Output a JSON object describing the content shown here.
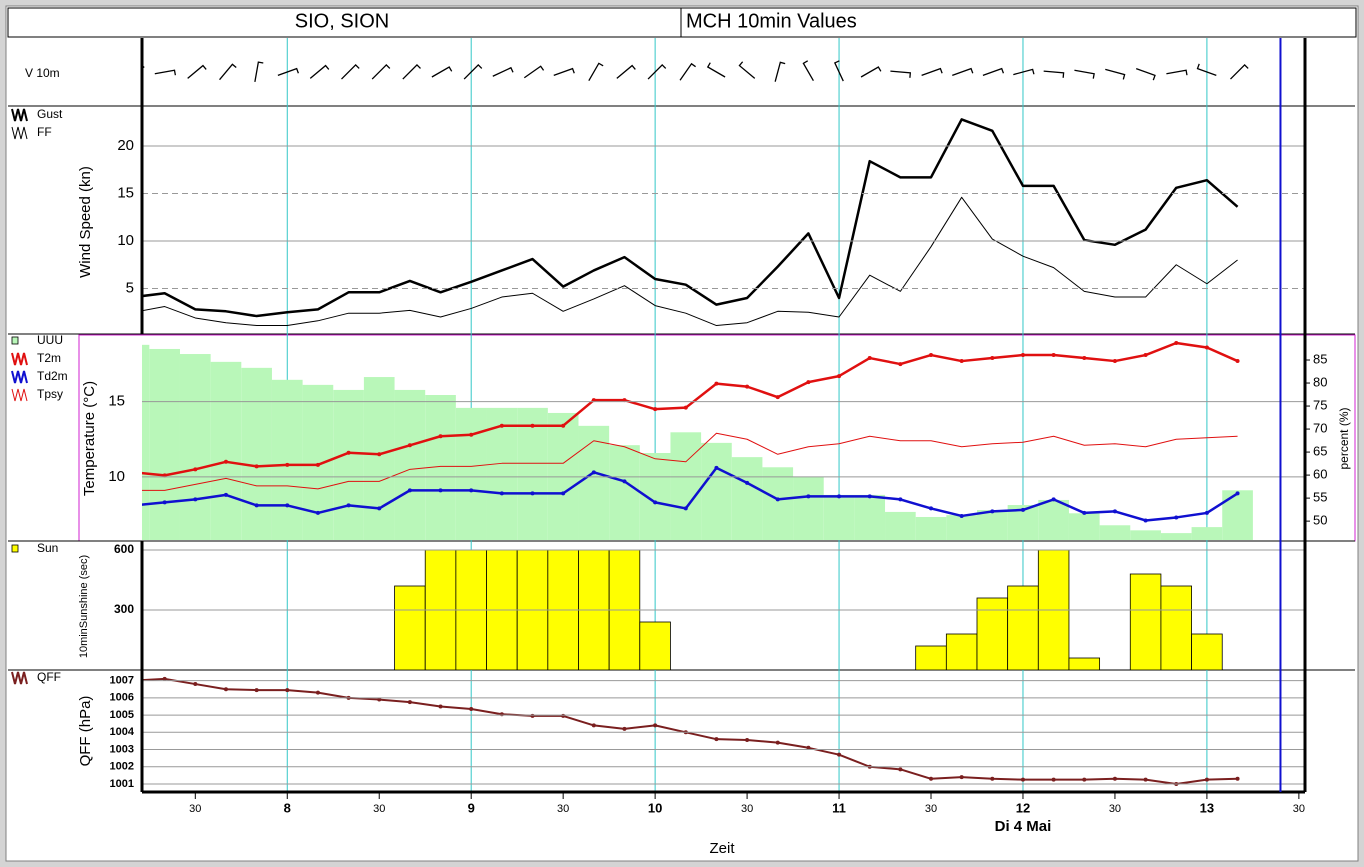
{
  "header": {
    "station": "SIO, SION",
    "title": "MCH 10min Values"
  },
  "x_axis": {
    "x": [
      430,
      440,
      450,
      460,
      470,
      480,
      490,
      500,
      510,
      520,
      530,
      540,
      550,
      560,
      570,
      580,
      590,
      600,
      610,
      620,
      630,
      640,
      650,
      660,
      670,
      680,
      690,
      700,
      710,
      720,
      730,
      740,
      750,
      760,
      770,
      780,
      790
    ],
    "xlim": [
      430,
      812
    ],
    "xticks": [
      {
        "value": 450,
        "label": "30"
      },
      {
        "value": 480,
        "label": "8"
      },
      {
        "value": 510,
        "label": "30"
      },
      {
        "value": 540,
        "label": "9"
      },
      {
        "value": 570,
        "label": "30"
      },
      {
        "value": 600,
        "label": "10"
      },
      {
        "value": 630,
        "label": "30"
      },
      {
        "value": 660,
        "label": "11"
      },
      {
        "value": 690,
        "label": "30"
      },
      {
        "value": 720,
        "label": "12"
      },
      {
        "value": 750,
        "label": "30"
      },
      {
        "value": 780,
        "label": "13"
      },
      {
        "value": 810,
        "label": "30"
      }
    ],
    "date_label": "Di 4 Mai",
    "xlabel": "Zeit",
    "now_line": 804,
    "now_color": "#1010d0"
  },
  "chart_data": [
    {
      "type": "wind_barbs",
      "label": "V 10m",
      "color": "#000000",
      "values": [
        220,
        260,
        230,
        220,
        190,
        250,
        230,
        225,
        225,
        225,
        240,
        225,
        245,
        235,
        250,
        210,
        230,
        225,
        215,
        120,
        130,
        195,
        150,
        155,
        240,
        275,
        250,
        250,
        250,
        255,
        275,
        280,
        285,
        290,
        260,
        110,
        225
      ]
    },
    {
      "type": "line",
      "ylabel": "Wind Speed (kn)",
      "ylim": [
        0,
        24
      ],
      "yticks": [
        5,
        10,
        15,
        20
      ],
      "grid": true,
      "series": [
        {
          "name": "Gust",
          "color": "#000000",
          "width": 2.5,
          "values": [
            4.1,
            4.5,
            2.8,
            2.6,
            2.1,
            2.5,
            2.8,
            4.6,
            4.6,
            5.8,
            4.6,
            5.7,
            6.9,
            8.1,
            5.2,
            6.9,
            8.3,
            6.0,
            5.4,
            3.3,
            4.0,
            7.3,
            10.8,
            4.0,
            18.4,
            16.7,
            16.7,
            22.8,
            21.6,
            15.8,
            15.8,
            10.1,
            9.6,
            11.2,
            15.6,
            16.4,
            13.6
          ]
        },
        {
          "name": "FF",
          "color": "#000000",
          "width": 1,
          "values": [
            2.5,
            3.1,
            1.9,
            1.4,
            1.1,
            1.1,
            1.6,
            2.4,
            2.4,
            2.7,
            2.0,
            2.9,
            4.1,
            4.5,
            2.6,
            3.9,
            5.3,
            3.2,
            2.4,
            1.1,
            1.4,
            2.6,
            2.5,
            2.0,
            6.4,
            4.7,
            9.4,
            14.6,
            10.2,
            8.4,
            7.2,
            4.7,
            4.1,
            4.1,
            7.5,
            5.5,
            8.0
          ]
        }
      ]
    },
    {
      "type": "line",
      "ylabel": "Temperature (°C)",
      "y2label": "percent (%)",
      "ylim": [
        5.8,
        19.3
      ],
      "yticks": [
        10,
        15
      ],
      "y2lim": [
        45.9,
        90
      ],
      "y2ticks": [
        50,
        55,
        60,
        65,
        70,
        75,
        80,
        85
      ],
      "grid": true,
      "series": [
        {
          "name": "UUU",
          "type": "bar",
          "axis": "y2",
          "color": "#b9f7b9",
          "values": [
            88.3,
            87.4,
            86.3,
            84.6,
            83.3,
            80.7,
            79.6,
            78.5,
            81.3,
            78.5,
            77.4,
            74.6,
            74.6,
            74.6,
            73.5,
            70.7,
            66.5,
            64.8,
            69.3,
            67.0,
            63.9,
            61.7,
            59.6,
            55.7,
            55.7,
            52.0,
            50.9,
            51.3,
            52.4,
            53.5,
            54.6,
            51.7,
            49.1,
            48.0,
            47.4,
            48.7,
            56.7
          ]
        },
        {
          "name": "T2m",
          "color": "#e01010",
          "width": 2.5,
          "markers": true,
          "values": [
            10.3,
            10.1,
            10.5,
            11.0,
            10.7,
            10.8,
            10.8,
            11.6,
            11.5,
            12.1,
            12.7,
            12.8,
            13.4,
            13.4,
            13.4,
            15.1,
            15.1,
            14.5,
            14.6,
            16.2,
            16.0,
            15.3,
            16.3,
            16.7,
            17.9,
            17.5,
            18.1,
            17.7,
            17.9,
            18.1,
            18.1,
            17.9,
            17.7,
            18.1,
            18.9,
            18.6,
            17.7
          ]
        },
        {
          "name": "Td2m",
          "color": "#1010d0",
          "width": 2.5,
          "markers": true,
          "values": [
            8.1,
            8.3,
            8.5,
            8.8,
            8.1,
            8.1,
            7.6,
            8.1,
            7.9,
            9.1,
            9.1,
            9.1,
            8.9,
            8.9,
            8.9,
            10.3,
            9.7,
            8.3,
            7.9,
            10.6,
            9.6,
            8.5,
            8.7,
            8.7,
            8.7,
            8.5,
            7.9,
            7.4,
            7.7,
            7.8,
            8.5,
            7.6,
            7.7,
            7.1,
            7.3,
            7.6,
            8.9
          ]
        },
        {
          "name": "Tpsy",
          "color": "#e01010",
          "width": 1,
          "values": [
            9.1,
            9.1,
            9.5,
            9.9,
            9.4,
            9.4,
            9.2,
            9.7,
            9.7,
            10.5,
            10.7,
            10.7,
            10.9,
            10.9,
            10.9,
            12.4,
            12.0,
            11.2,
            11.0,
            12.9,
            12.5,
            11.5,
            12.0,
            12.2,
            12.7,
            12.4,
            12.4,
            12.0,
            12.2,
            12.3,
            12.7,
            12.1,
            12.2,
            12.0,
            12.5,
            12.6,
            12.7
          ]
        }
      ]
    },
    {
      "type": "bar",
      "ylabel": "10minSunshine (sec)",
      "ylim": [
        0,
        635
      ],
      "yticks": [
        300,
        600
      ],
      "grid": true,
      "series": [
        {
          "name": "Sun",
          "color": "#ffff00",
          "values": [
            0,
            0,
            0,
            0,
            0,
            0,
            0,
            0,
            0,
            420,
            600,
            600,
            600,
            600,
            600,
            600,
            600,
            240,
            0,
            0,
            0,
            0,
            0,
            0,
            0,
            0,
            120,
            180,
            360,
            420,
            600,
            60,
            0,
            480,
            420,
            180,
            0
          ]
        }
      ]
    },
    {
      "type": "line",
      "ylabel": "QFF (hPa)",
      "ylim": [
        1000.65,
        1007.5
      ],
      "yticks": [
        1001,
        1002,
        1003,
        1004,
        1005,
        1006,
        1007
      ],
      "grid": true,
      "series": [
        {
          "name": "QFF",
          "color": "#7a1f1f",
          "width": 2,
          "markers": true,
          "values": [
            1007.0,
            1007.1,
            1006.8,
            1006.5,
            1006.45,
            1006.45,
            1006.3,
            1006.0,
            1005.9,
            1005.75,
            1005.5,
            1005.35,
            1005.05,
            1004.95,
            1004.95,
            1004.4,
            1004.2,
            1004.4,
            1004.0,
            1003.6,
            1003.55,
            1003.4,
            1003.1,
            1002.7,
            1002.0,
            1001.85,
            1001.3,
            1001.4,
            1001.3,
            1001.25,
            1001.25,
            1001.25,
            1001.3,
            1001.25,
            1001.0,
            1001.25,
            1001.3
          ]
        }
      ]
    }
  ]
}
